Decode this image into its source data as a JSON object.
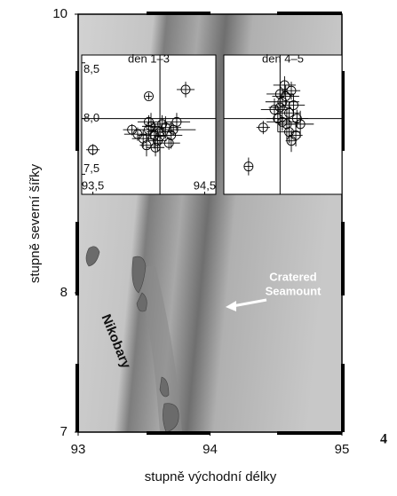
{
  "map": {
    "xlabel": "stupně východní délky",
    "ylabel": "stupně severní šířky",
    "xlim": [
      93,
      95
    ],
    "ylim": [
      7,
      10
    ],
    "xticks": [
      93,
      94,
      95
    ],
    "yticks": [
      7,
      8,
      10
    ],
    "place_label": "Nikobary",
    "feature_label": [
      "Cratered",
      "Seamount"
    ],
    "figure_number": "4"
  },
  "insets": [
    {
      "title": "den 1–3",
      "xlim": [
        93.4,
        94.6
      ],
      "ylim": [
        7.32,
        8.57
      ],
      "xticks": [
        {
          "value": 93.5,
          "label": "93,5"
        },
        {
          "value": 94.5,
          "label": "94,5"
        }
      ],
      "yticks": [
        {
          "value": 7.5,
          "label": "7,5"
        },
        {
          "value": 8.0,
          "label": "8,0"
        },
        {
          "value": 8.5,
          "label": "8,5"
        }
      ],
      "crosshair_x": 94.1,
      "crosshair_y": 8.0,
      "x": [
        93.5,
        94.0,
        94.33,
        94.0,
        94.05,
        94.1,
        93.95,
        94.15,
        94.2,
        93.9,
        94.08,
        94.12,
        94.02,
        94.25,
        93.98,
        94.18,
        94.06,
        94.0,
        94.22,
        93.85,
        94.1
      ],
      "y": [
        7.72,
        8.2,
        8.26,
        7.9,
        7.85,
        7.88,
        7.82,
        7.92,
        7.85,
        7.86,
        7.8,
        7.95,
        7.93,
        7.97,
        7.76,
        7.78,
        7.74,
        7.97,
        7.9,
        7.9,
        7.84
      ],
      "xerr": [
        0.06,
        0.03,
        0.08,
        0.1,
        0.15,
        0.12,
        0.1,
        0.14,
        0.1,
        0.12,
        0.08,
        0.1,
        0.08,
        0.12,
        0.06,
        0.1,
        0.08,
        0.1,
        0.2,
        0.08,
        0.05
      ],
      "yerr": [
        0.05,
        0.03,
        0.07,
        0.1,
        0.12,
        0.1,
        0.08,
        0.1,
        0.12,
        0.06,
        0.1,
        0.08,
        0.12,
        0.08,
        0.1,
        0.06,
        0.08,
        0.06,
        0.05,
        0.05,
        0.15
      ]
    },
    {
      "title": "den 4–5",
      "xlim": [
        93.6,
        94.65
      ],
      "ylim": [
        7.32,
        8.57
      ],
      "crosshair_x": 94.1,
      "crosshair_y": 8.0,
      "x": [
        94.1,
        94.15,
        94.18,
        94.12,
        94.2,
        94.08,
        94.22,
        94.16,
        94.25,
        94.05,
        94.14,
        94.18,
        93.95,
        94.24,
        93.82,
        94.1,
        94.2,
        94.28,
        94.12
      ],
      "y": [
        8.1,
        8.2,
        8.05,
        8.15,
        8.25,
        8.0,
        8.12,
        7.95,
        8.0,
        8.08,
        8.3,
        7.88,
        7.92,
        7.85,
        7.57,
        8.22,
        7.8,
        7.95,
        7.97
      ],
      "xerr": [
        0.1,
        0.12,
        0.1,
        0.15,
        0.08,
        0.1,
        0.1,
        0.08,
        0.1,
        0.12,
        0.1,
        0.1,
        0.06,
        0.06,
        0.04,
        0.12,
        0.05,
        0.12,
        0.14
      ],
      "yerr": [
        0.12,
        0.1,
        0.1,
        0.1,
        0.08,
        0.12,
        0.1,
        0.15,
        0.08,
        0.1,
        0.08,
        0.1,
        0.06,
        0.1,
        0.08,
        0.08,
        0.1,
        0.12,
        0.08
      ]
    }
  ]
}
